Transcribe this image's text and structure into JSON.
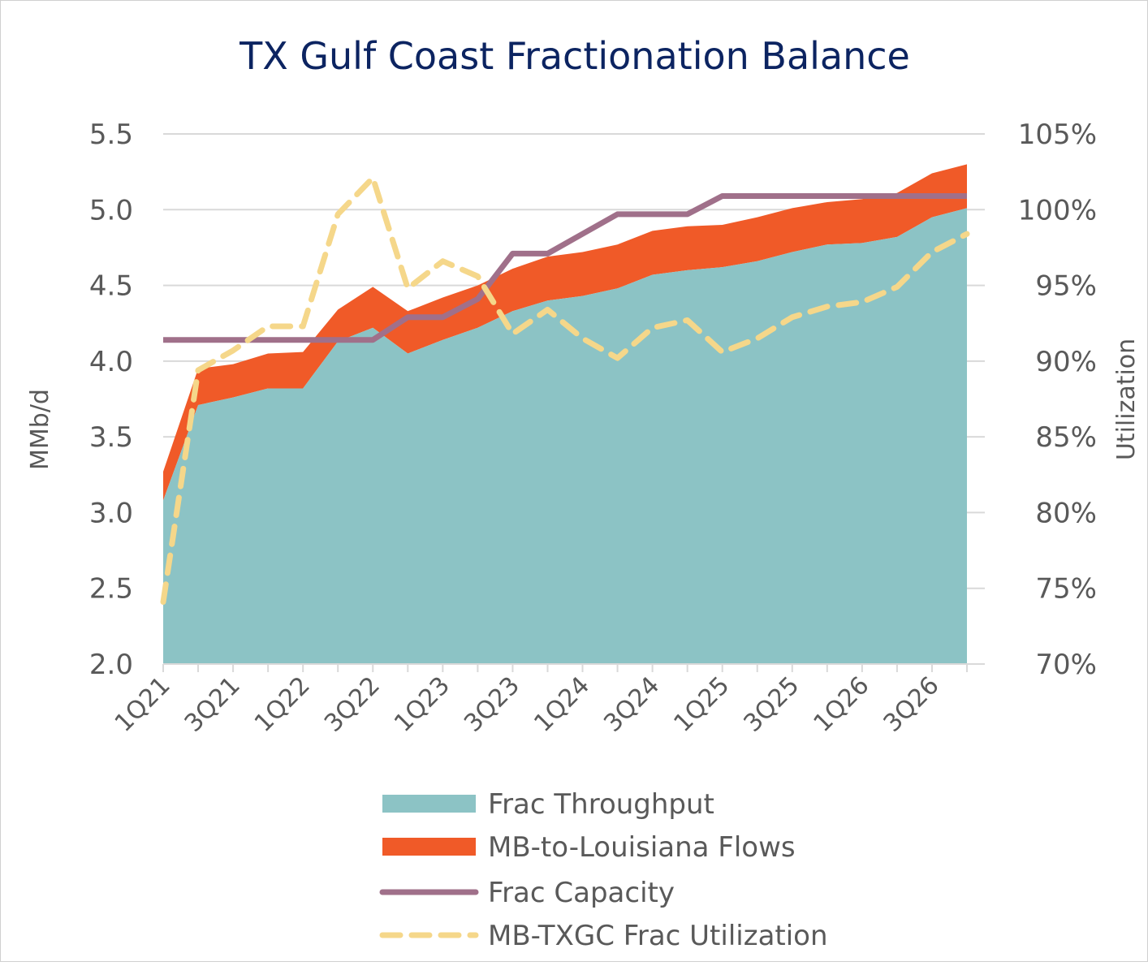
{
  "chart_data": {
    "type": "area",
    "title": "TX Gulf Coast Fractionation Balance",
    "ylabel": "MMb/d",
    "y2label": "Utilization",
    "ylim": [
      2.0,
      5.5
    ],
    "yticks": [
      "2.0",
      "2.5",
      "3.0",
      "3.5",
      "4.0",
      "4.5",
      "5.0",
      "5.5"
    ],
    "y2lim": [
      70,
      105
    ],
    "y2ticks": [
      "70%",
      "75%",
      "80%",
      "85%",
      "90%",
      "95%",
      "100%",
      "105%"
    ],
    "grid": true,
    "legend_position": "bottom",
    "categories": [
      "1Q21",
      "2Q21",
      "3Q21",
      "4Q21",
      "1Q22",
      "2Q22",
      "3Q22",
      "4Q22",
      "1Q23",
      "2Q23",
      "3Q23",
      "4Q23",
      "1Q24",
      "2Q24",
      "3Q24",
      "4Q24",
      "1Q25",
      "2Q25",
      "3Q25",
      "4Q25",
      "1Q26",
      "2Q26",
      "3Q26",
      "4Q26"
    ],
    "xtick_labels": [
      "1Q21",
      "3Q21",
      "1Q22",
      "3Q22",
      "1Q23",
      "3Q23",
      "1Q24",
      "3Q24",
      "1Q25",
      "3Q25",
      "1Q26",
      "3Q26"
    ],
    "series": [
      {
        "name": "Frac Throughput",
        "type": "stacked-area",
        "axis": "left",
        "color": "#8CC3C5",
        "values": [
          3.08,
          3.71,
          3.76,
          3.82,
          3.82,
          4.13,
          4.22,
          4.05,
          4.14,
          4.22,
          4.33,
          4.4,
          4.43,
          4.48,
          4.57,
          4.6,
          4.62,
          4.66,
          4.72,
          4.77,
          4.78,
          4.82,
          4.95,
          5.01
        ]
      },
      {
        "name": "MB-to-Louisiana Flows",
        "type": "stacked-area",
        "axis": "left",
        "color": "#F05A28",
        "values": [
          0.19,
          0.24,
          0.22,
          0.23,
          0.24,
          0.21,
          0.27,
          0.28,
          0.28,
          0.28,
          0.28,
          0.29,
          0.29,
          0.29,
          0.29,
          0.29,
          0.28,
          0.29,
          0.29,
          0.28,
          0.29,
          0.29,
          0.29,
          0.29
        ]
      },
      {
        "name": "Frac Capacity",
        "type": "line",
        "axis": "left",
        "color": "#A0708A",
        "values": [
          4.14,
          4.14,
          4.14,
          4.14,
          4.14,
          4.14,
          4.14,
          4.29,
          4.29,
          4.41,
          4.71,
          4.71,
          4.84,
          4.97,
          4.97,
          4.97,
          5.09,
          5.09,
          5.09,
          5.09,
          5.09,
          5.09,
          5.09,
          5.09
        ]
      },
      {
        "name": "MB-TXGC Frac Utilization",
        "type": "dashed-line",
        "axis": "right",
        "color": "#F5D78A",
        "values": [
          74.1,
          89.4,
          90.7,
          92.3,
          92.3,
          99.7,
          102.1,
          94.8,
          96.6,
          95.6,
          91.8,
          93.4,
          91.5,
          90.2,
          92.2,
          92.7,
          90.6,
          91.5,
          92.9,
          93.6,
          93.9,
          94.9,
          97.2,
          98.4
        ]
      }
    ]
  }
}
